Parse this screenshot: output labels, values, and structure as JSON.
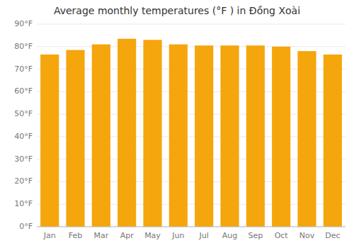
{
  "chart_data": {
    "type": "bar",
    "title": "Average monthly temperatures (°F ) in Đồng Xoài",
    "categories": [
      "Jan",
      "Feb",
      "Mar",
      "Apr",
      "May",
      "Jun",
      "Jul",
      "Aug",
      "Sep",
      "Oct",
      "Nov",
      "Dec"
    ],
    "values": [
      76.5,
      78.5,
      81.0,
      83.5,
      83.0,
      81.0,
      80.5,
      80.5,
      80.5,
      80.0,
      78.0,
      76.5
    ],
    "color": "#f5a60d",
    "ylim": [
      0,
      90
    ],
    "yticks": [
      {
        "value": 0,
        "label": "0°F"
      },
      {
        "value": 10,
        "label": "10°F"
      },
      {
        "value": 20,
        "label": "20°F"
      },
      {
        "value": 30,
        "label": "30°F"
      },
      {
        "value": 40,
        "label": "40°F"
      },
      {
        "value": 50,
        "label": "50°F"
      },
      {
        "value": 60,
        "label": "60°F"
      },
      {
        "value": 70,
        "label": "70°F"
      },
      {
        "value": 80,
        "label": "80°F"
      },
      {
        "value": 90,
        "label": "90°F"
      }
    ],
    "grid": true
  }
}
